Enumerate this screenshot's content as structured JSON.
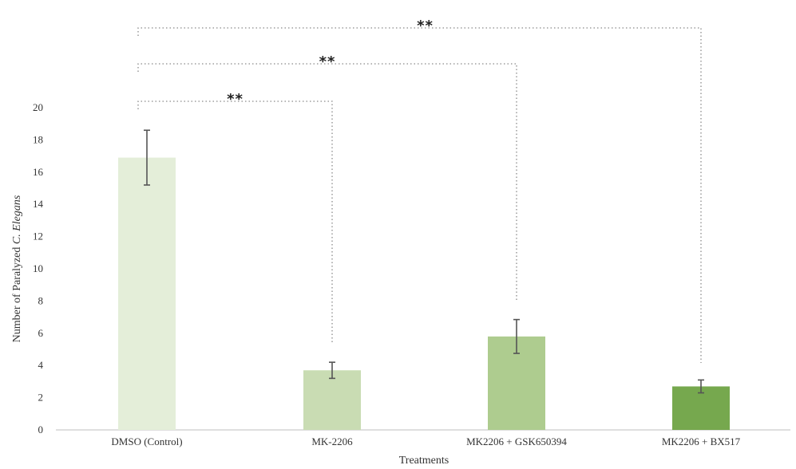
{
  "chart_data": {
    "type": "bar",
    "categories": [
      "DMSO (Control)",
      "MK-2206",
      "MK2206 + GSK650394",
      "MK2206 + BX517"
    ],
    "values": [
      16.9,
      3.7,
      5.8,
      2.7
    ],
    "error": [
      1.7,
      0.5,
      1.05,
      0.4
    ],
    "colors": [
      "#e4eed9",
      "#c9dcb3",
      "#aecc8f",
      "#76a84e"
    ],
    "xlabel": "Treatments",
    "ylabel_prefix": "Number of Paralyzed ",
    "ylabel_italic": "C. Elegans",
    "ylim": [
      0,
      20
    ],
    "yticks": [
      "0",
      "2",
      "4",
      "6",
      "8",
      "10",
      "12",
      "14",
      "16",
      "18",
      "20"
    ],
    "grid": false,
    "significance": [
      {
        "from": 0,
        "to": 1,
        "label": "**"
      },
      {
        "from": 0,
        "to": 2,
        "label": "**"
      },
      {
        "from": 0,
        "to": 3,
        "label": "**"
      }
    ]
  }
}
